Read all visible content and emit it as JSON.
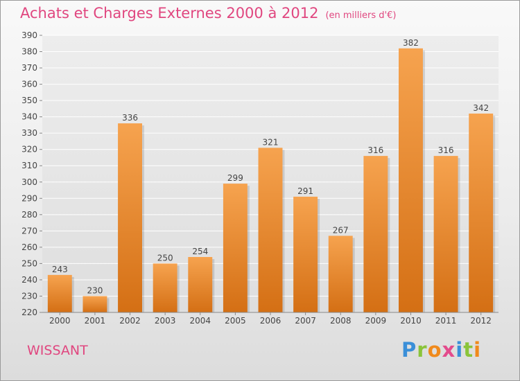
{
  "title": "Achats et Charges Externes 2000 à 2012",
  "unit_label": "(en milliers d'€)",
  "location": "WISSANT",
  "brand": {
    "letters": [
      "P",
      "r",
      "o",
      "x",
      "i",
      "t",
      "i"
    ],
    "colors": [
      "#3a8fd8",
      "#8ac43a",
      "#f08a1c",
      "#e34b8c",
      "#3a8fd8",
      "#8ac43a",
      "#f08a1c"
    ]
  },
  "colors": {
    "title": "#e0467f",
    "bar_light": "#f6a34f",
    "bar_dark": "#d46f14"
  },
  "chart_data": {
    "type": "bar",
    "categories": [
      "2000",
      "2001",
      "2002",
      "2003",
      "2004",
      "2005",
      "2006",
      "2007",
      "2008",
      "2009",
      "2010",
      "2011",
      "2012"
    ],
    "values": [
      243,
      230,
      336,
      250,
      254,
      299,
      321,
      291,
      267,
      316,
      382,
      316,
      342
    ],
    "ylim": [
      220,
      390
    ],
    "yticks": [
      220,
      230,
      240,
      250,
      260,
      270,
      280,
      290,
      300,
      310,
      320,
      330,
      340,
      350,
      360,
      370,
      380,
      390
    ],
    "grid": true,
    "data_labels": true,
    "title": "Achats et Charges Externes 2000 à 2012",
    "xlabel": "",
    "ylabel": ""
  }
}
